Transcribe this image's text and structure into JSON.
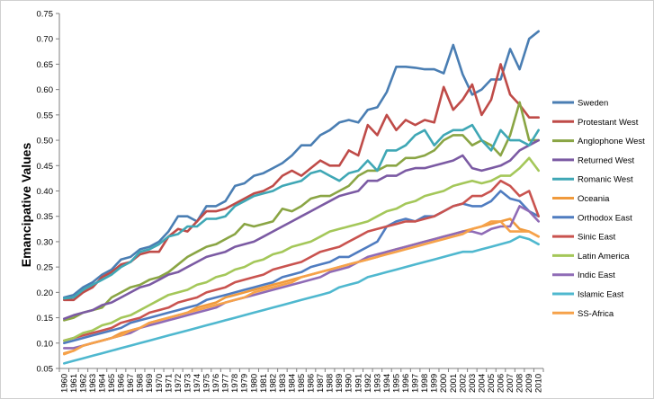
{
  "chart_data": {
    "type": "line",
    "title": "",
    "xlabel": "",
    "ylabel": "Emancipative Values",
    "ylim": [
      0.05,
      0.75
    ],
    "yticks": [
      "0.05",
      "0.10",
      "0.15",
      "0.20",
      "0.25",
      "0.30",
      "0.35",
      "0.40",
      "0.45",
      "0.50",
      "0.55",
      "0.60",
      "0.65",
      "0.70",
      "0.75"
    ],
    "grid": false,
    "legend_position": "right",
    "categories": [
      "1960",
      "1961",
      "1962",
      "1963",
      "1964",
      "1965",
      "1966",
      "1967",
      "1968",
      "1969",
      "1970",
      "1971",
      "1972",
      "1973",
      "1974",
      "1975",
      "1976",
      "1977",
      "1978",
      "1979",
      "1980",
      "1981",
      "1982",
      "1983",
      "1984",
      "1985",
      "1986",
      "1987",
      "1988",
      "1989",
      "1990",
      "1991",
      "1992",
      "1993",
      "1994",
      "1995",
      "1996",
      "1997",
      "1998",
      "1999",
      "2000",
      "2001",
      "2002",
      "2003",
      "2004",
      "2005",
      "2006",
      "2007",
      "2008",
      "2009",
      "2010"
    ],
    "series": [
      {
        "name": "Sweden",
        "color": "#4a7eb3",
        "values": [
          0.19,
          0.195,
          0.21,
          0.22,
          0.235,
          0.245,
          0.265,
          0.27,
          0.285,
          0.29,
          0.3,
          0.32,
          0.35,
          0.35,
          0.34,
          0.37,
          0.37,
          0.38,
          0.41,
          0.415,
          0.43,
          0.435,
          0.445,
          0.455,
          0.47,
          0.49,
          0.49,
          0.51,
          0.52,
          0.535,
          0.54,
          0.535,
          0.56,
          0.565,
          0.595,
          0.645,
          0.645,
          0.643,
          0.64,
          0.64,
          0.632,
          0.688,
          0.63,
          0.59,
          0.6,
          0.62,
          0.62,
          0.68,
          0.64,
          0.7,
          0.715
        ]
      },
      {
        "name": "Protestant West",
        "color": "#bf4b48",
        "values": [
          0.185,
          0.185,
          0.2,
          0.21,
          0.23,
          0.24,
          0.255,
          0.26,
          0.275,
          0.28,
          0.28,
          0.31,
          0.325,
          0.32,
          0.34,
          0.36,
          0.36,
          0.365,
          0.375,
          0.385,
          0.395,
          0.4,
          0.41,
          0.43,
          0.44,
          0.43,
          0.445,
          0.46,
          0.45,
          0.45,
          0.48,
          0.47,
          0.53,
          0.51,
          0.55,
          0.52,
          0.54,
          0.53,
          0.54,
          0.535,
          0.605,
          0.56,
          0.58,
          0.61,
          0.55,
          0.58,
          0.65,
          0.59,
          0.57,
          0.545,
          0.545
        ]
      },
      {
        "name": "Anglophone West",
        "color": "#8aa544",
        "values": [
          0.145,
          0.15,
          0.16,
          0.165,
          0.17,
          0.19,
          0.2,
          0.21,
          0.215,
          0.225,
          0.23,
          0.24,
          0.255,
          0.27,
          0.28,
          0.29,
          0.295,
          0.305,
          0.315,
          0.335,
          0.33,
          0.335,
          0.34,
          0.365,
          0.36,
          0.37,
          0.385,
          0.39,
          0.39,
          0.4,
          0.41,
          0.43,
          0.44,
          0.44,
          0.45,
          0.45,
          0.465,
          0.465,
          0.47,
          0.48,
          0.5,
          0.51,
          0.51,
          0.49,
          0.5,
          0.49,
          0.47,
          0.51,
          0.575,
          0.5,
          0.5
        ]
      },
      {
        "name": "Returned West",
        "color": "#7b5aa3",
        "values": [
          0.148,
          0.155,
          0.16,
          0.165,
          0.175,
          0.18,
          0.19,
          0.2,
          0.21,
          0.215,
          0.225,
          0.235,
          0.24,
          0.25,
          0.26,
          0.27,
          0.275,
          0.28,
          0.29,
          0.295,
          0.3,
          0.31,
          0.32,
          0.33,
          0.34,
          0.35,
          0.36,
          0.37,
          0.38,
          0.39,
          0.395,
          0.4,
          0.42,
          0.42,
          0.43,
          0.43,
          0.44,
          0.445,
          0.445,
          0.45,
          0.455,
          0.46,
          0.47,
          0.445,
          0.44,
          0.445,
          0.45,
          0.46,
          0.48,
          0.49,
          0.5
        ]
      },
      {
        "name": "Romanic West",
        "color": "#3fa7b5",
        "values": [
          0.188,
          0.19,
          0.205,
          0.215,
          0.225,
          0.235,
          0.25,
          0.26,
          0.28,
          0.285,
          0.295,
          0.31,
          0.315,
          0.33,
          0.33,
          0.345,
          0.345,
          0.35,
          0.37,
          0.38,
          0.39,
          0.395,
          0.4,
          0.41,
          0.415,
          0.42,
          0.435,
          0.44,
          0.43,
          0.42,
          0.435,
          0.44,
          0.46,
          0.44,
          0.48,
          0.48,
          0.49,
          0.51,
          0.52,
          0.49,
          0.51,
          0.52,
          0.52,
          0.53,
          0.5,
          0.48,
          0.52,
          0.5,
          0.5,
          0.49,
          0.52
        ]
      },
      {
        "name": "Oceania",
        "color": "#f09a3c",
        "values": [
          0.08,
          0.085,
          0.095,
          0.1,
          0.105,
          0.11,
          0.12,
          0.125,
          0.13,
          0.14,
          0.145,
          0.15,
          0.155,
          0.16,
          0.17,
          0.175,
          0.18,
          0.19,
          0.195,
          0.2,
          0.205,
          0.21,
          0.215,
          0.22,
          0.225,
          0.23,
          0.235,
          0.24,
          0.245,
          0.25,
          0.255,
          0.26,
          0.265,
          0.27,
          0.28,
          0.285,
          0.29,
          0.295,
          0.3,
          0.305,
          0.31,
          0.315,
          0.32,
          0.325,
          0.33,
          0.335,
          0.34,
          0.345,
          0.325,
          0.32,
          0.31
        ]
      },
      {
        "name": "Orthodox East",
        "color": "#4f7cc0",
        "values": [
          0.1,
          0.105,
          0.11,
          0.115,
          0.12,
          0.125,
          0.13,
          0.14,
          0.145,
          0.15,
          0.155,
          0.16,
          0.165,
          0.17,
          0.175,
          0.185,
          0.19,
          0.195,
          0.2,
          0.205,
          0.21,
          0.215,
          0.22,
          0.23,
          0.235,
          0.24,
          0.25,
          0.255,
          0.26,
          0.27,
          0.27,
          0.28,
          0.29,
          0.3,
          0.33,
          0.34,
          0.345,
          0.34,
          0.35,
          0.35,
          0.36,
          0.37,
          0.375,
          0.37,
          0.37,
          0.38,
          0.4,
          0.385,
          0.38,
          0.36,
          0.35
        ]
      },
      {
        "name": "Sinic East",
        "color": "#c9534f",
        "values": [
          0.105,
          0.11,
          0.115,
          0.12,
          0.125,
          0.13,
          0.14,
          0.145,
          0.15,
          0.16,
          0.165,
          0.17,
          0.18,
          0.185,
          0.19,
          0.2,
          0.205,
          0.21,
          0.22,
          0.225,
          0.23,
          0.235,
          0.245,
          0.25,
          0.255,
          0.26,
          0.27,
          0.28,
          0.285,
          0.29,
          0.3,
          0.31,
          0.32,
          0.325,
          0.33,
          0.335,
          0.34,
          0.34,
          0.345,
          0.35,
          0.36,
          0.37,
          0.375,
          0.39,
          0.39,
          0.4,
          0.42,
          0.41,
          0.39,
          0.4,
          0.35
        ]
      },
      {
        "name": "Latin America",
        "color": "#a4c759",
        "values": [
          0.105,
          0.11,
          0.12,
          0.125,
          0.135,
          0.14,
          0.15,
          0.155,
          0.165,
          0.175,
          0.185,
          0.195,
          0.2,
          0.205,
          0.215,
          0.22,
          0.23,
          0.235,
          0.245,
          0.25,
          0.26,
          0.265,
          0.275,
          0.28,
          0.29,
          0.295,
          0.3,
          0.31,
          0.32,
          0.325,
          0.33,
          0.335,
          0.34,
          0.35,
          0.36,
          0.365,
          0.375,
          0.38,
          0.39,
          0.395,
          0.4,
          0.41,
          0.415,
          0.42,
          0.415,
          0.42,
          0.43,
          0.43,
          0.445,
          0.465,
          0.44
        ]
      },
      {
        "name": "Indic East",
        "color": "#8f6bb6",
        "values": [
          0.09,
          0.09,
          0.095,
          0.1,
          0.105,
          0.11,
          0.115,
          0.12,
          0.13,
          0.135,
          0.14,
          0.145,
          0.15,
          0.155,
          0.16,
          0.165,
          0.17,
          0.18,
          0.185,
          0.19,
          0.195,
          0.2,
          0.205,
          0.21,
          0.215,
          0.22,
          0.225,
          0.23,
          0.24,
          0.245,
          0.25,
          0.26,
          0.27,
          0.275,
          0.28,
          0.285,
          0.29,
          0.295,
          0.3,
          0.305,
          0.31,
          0.315,
          0.32,
          0.32,
          0.315,
          0.325,
          0.33,
          0.33,
          0.37,
          0.36,
          0.34
        ]
      },
      {
        "name": "Islamic East",
        "color": "#4fb8cf",
        "values": [
          0.06,
          0.065,
          0.07,
          0.075,
          0.08,
          0.085,
          0.09,
          0.095,
          0.1,
          0.105,
          0.11,
          0.115,
          0.12,
          0.125,
          0.13,
          0.135,
          0.14,
          0.145,
          0.15,
          0.155,
          0.16,
          0.165,
          0.17,
          0.175,
          0.18,
          0.185,
          0.19,
          0.195,
          0.2,
          0.21,
          0.215,
          0.22,
          0.23,
          0.235,
          0.24,
          0.245,
          0.25,
          0.255,
          0.26,
          0.265,
          0.27,
          0.275,
          0.28,
          0.28,
          0.285,
          0.29,
          0.295,
          0.3,
          0.31,
          0.305,
          0.295
        ]
      },
      {
        "name": "SS-Africa",
        "color": "#f6a24a",
        "values": [
          0.078,
          0.085,
          0.095,
          0.1,
          0.105,
          0.11,
          0.115,
          0.125,
          0.13,
          0.14,
          0.145,
          0.15,
          0.155,
          0.16,
          0.165,
          0.17,
          0.175,
          0.18,
          0.185,
          0.19,
          0.2,
          0.205,
          0.21,
          0.215,
          0.22,
          0.23,
          0.235,
          0.24,
          0.245,
          0.25,
          0.255,
          0.26,
          0.265,
          0.27,
          0.275,
          0.28,
          0.285,
          0.29,
          0.295,
          0.3,
          0.305,
          0.31,
          0.315,
          0.325,
          0.33,
          0.34,
          0.34,
          0.32,
          0.32,
          0.32,
          0.31
        ]
      }
    ]
  }
}
